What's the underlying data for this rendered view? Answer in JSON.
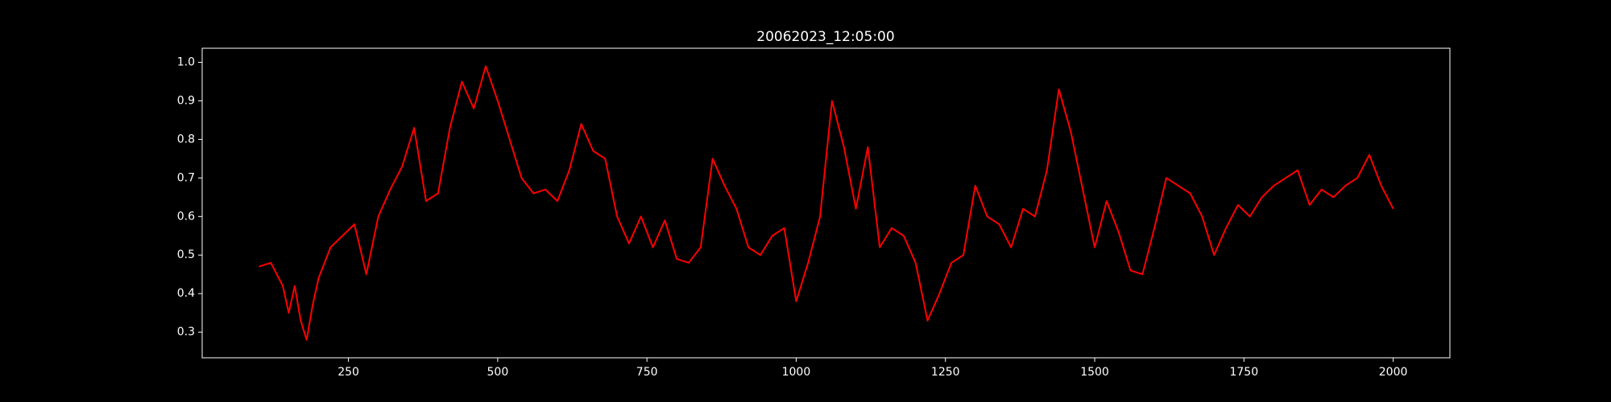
{
  "chart_data": {
    "type": "line",
    "title": "20062023_12:05:00",
    "x": [
      100,
      120,
      140,
      150,
      160,
      170,
      180,
      190,
      200,
      220,
      240,
      260,
      280,
      300,
      320,
      340,
      360,
      380,
      400,
      420,
      440,
      460,
      480,
      500,
      520,
      540,
      560,
      580,
      600,
      620,
      640,
      660,
      680,
      700,
      720,
      740,
      760,
      780,
      800,
      820,
      840,
      860,
      880,
      900,
      920,
      940,
      960,
      980,
      1000,
      1020,
      1040,
      1060,
      1080,
      1100,
      1120,
      1140,
      1160,
      1180,
      1200,
      1220,
      1240,
      1260,
      1280,
      1300,
      1320,
      1340,
      1360,
      1380,
      1400,
      1420,
      1440,
      1460,
      1480,
      1500,
      1520,
      1540,
      1560,
      1580,
      1600,
      1620,
      1640,
      1660,
      1680,
      1700,
      1720,
      1740,
      1760,
      1780,
      1800,
      1820,
      1840,
      1860,
      1880,
      1900,
      1920,
      1940,
      1960,
      1980,
      2000
    ],
    "series": [
      {
        "color": "#ff0000",
        "values": [
          0.47,
          0.48,
          0.42,
          0.35,
          0.42,
          0.33,
          0.28,
          0.37,
          0.44,
          0.52,
          0.55,
          0.58,
          0.45,
          0.6,
          0.67,
          0.73,
          0.83,
          0.64,
          0.66,
          0.83,
          0.95,
          0.88,
          0.99,
          0.9,
          0.8,
          0.7,
          0.66,
          0.67,
          0.64,
          0.72,
          0.84,
          0.77,
          0.75,
          0.6,
          0.53,
          0.6,
          0.52,
          0.59,
          0.49,
          0.48,
          0.52,
          0.75,
          0.68,
          0.62,
          0.52,
          0.5,
          0.55,
          0.57,
          0.38,
          0.48,
          0.6,
          0.9,
          0.78,
          0.62,
          0.78,
          0.52,
          0.57,
          0.55,
          0.48,
          0.33,
          0.4,
          0.48,
          0.5,
          0.68,
          0.6,
          0.58,
          0.52,
          0.62,
          0.6,
          0.72,
          0.93,
          0.82,
          0.67,
          0.52,
          0.64,
          0.56,
          0.46,
          0.45,
          0.57,
          0.7,
          0.68,
          0.66,
          0.6,
          0.5,
          0.57,
          0.63,
          0.6,
          0.65,
          0.68,
          0.7,
          0.72,
          0.63,
          0.67,
          0.65,
          0.68,
          0.7,
          0.76,
          0.68,
          0.62
        ]
      }
    ],
    "xlim": [
      5,
      2095
    ],
    "ylim": [
      0.2335,
      1.0365
    ],
    "xticks": [
      250,
      500,
      750,
      1000,
      1250,
      1500,
      1750,
      2000
    ],
    "yticks": [
      0.3,
      0.4,
      0.5,
      0.6,
      0.7,
      0.8,
      0.9,
      {
        "value": 1,
        "label": "1.0"
      }
    ]
  }
}
